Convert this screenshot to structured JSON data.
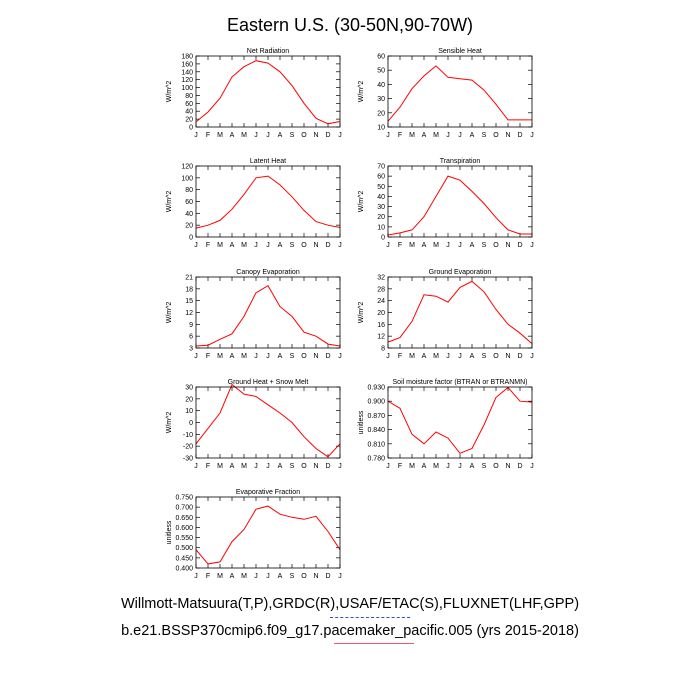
{
  "figure_title": "Eastern U.S. (30-50N,90-70W)",
  "months": [
    "J",
    "F",
    "M",
    "A",
    "M",
    "J",
    "J",
    "A",
    "S",
    "O",
    "N",
    "D",
    "J"
  ],
  "captions": {
    "line1": "Willmott-Matsuura(T,P),GRDC(R),USAF/ETAC(S),FLUXNET(LHF,GPP)",
    "line2": "b.e21.BSSP370cmip6.f09_g17.pacemaker_pacific.005 (yrs 2015-2018)"
  },
  "line_color": "#ff0000",
  "chart_data": [
    {
      "type": "line",
      "title": "Net Radiation",
      "ylabel": "W/m^2",
      "ylim": [
        0,
        180
      ],
      "yticks": [
        0,
        20,
        40,
        60,
        80,
        100,
        120,
        140,
        160,
        180
      ],
      "ytick_labels": [
        "0",
        "20",
        "40",
        "60",
        "80",
        "100",
        "120",
        "140",
        "160",
        "180"
      ],
      "values": [
        13,
        38,
        73,
        127,
        153,
        168,
        162,
        140,
        105,
        60,
        22,
        8,
        14
      ]
    },
    {
      "type": "line",
      "title": "Sensible Heat",
      "ylabel": "W/m^2",
      "ylim": [
        10,
        60
      ],
      "yticks": [
        10,
        20,
        30,
        40,
        50,
        60
      ],
      "ytick_labels": [
        "10",
        "20",
        "30",
        "40",
        "50",
        "60"
      ],
      "values": [
        14,
        24,
        37,
        46,
        53,
        45,
        44,
        43,
        36,
        26,
        15,
        15,
        15
      ]
    },
    {
      "type": "line",
      "title": "Latent Heat",
      "ylabel": "W/m^2",
      "ylim": [
        0,
        120
      ],
      "yticks": [
        0,
        20,
        40,
        60,
        80,
        100,
        120
      ],
      "ytick_labels": [
        "0",
        "20",
        "40",
        "60",
        "80",
        "100",
        "120"
      ],
      "values": [
        15,
        20,
        28,
        47,
        72,
        100,
        103,
        88,
        68,
        45,
        26,
        20,
        16
      ]
    },
    {
      "type": "line",
      "title": "Transpiration",
      "ylabel": "W/m^2",
      "ylim": [
        0,
        70
      ],
      "yticks": [
        0,
        10,
        20,
        30,
        40,
        50,
        60,
        70
      ],
      "ytick_labels": [
        "0",
        "10",
        "20",
        "30",
        "40",
        "50",
        "60",
        "70"
      ],
      "values": [
        2,
        4,
        7,
        20,
        40,
        60,
        56,
        45,
        33,
        19,
        7,
        3,
        3
      ]
    },
    {
      "type": "line",
      "title": "Canopy Evaporation",
      "ylabel": "W/m^2",
      "ylim": [
        3,
        21
      ],
      "yticks": [
        3,
        6,
        9,
        12,
        15,
        18,
        21
      ],
      "ytick_labels": [
        "3",
        "6",
        "9",
        "12",
        "15",
        "18",
        "21"
      ],
      "values": [
        3.5,
        3.7,
        5.2,
        6.6,
        11,
        17,
        18.8,
        13.5,
        11,
        7,
        6,
        4,
        3.5
      ]
    },
    {
      "type": "line",
      "title": "Ground Evaporation",
      "ylabel": "W/m^2",
      "ylim": [
        8,
        32
      ],
      "yticks": [
        8,
        12,
        16,
        20,
        24,
        28,
        32
      ],
      "ytick_labels": [
        "8",
        "12",
        "16",
        "20",
        "24",
        "28",
        "32"
      ],
      "values": [
        10,
        11.5,
        17,
        26,
        25.5,
        23.5,
        28.5,
        30.5,
        27,
        21,
        16,
        13,
        9.5
      ]
    },
    {
      "type": "line",
      "title": "Ground Heat + Snow Melt",
      "ylabel": "W/m^2",
      "ylim": [
        -30,
        30
      ],
      "yticks": [
        -30,
        -20,
        -10,
        0,
        10,
        20,
        30
      ],
      "ytick_labels": [
        "-30",
        "-20",
        "-10",
        "0",
        "10",
        "20",
        "30"
      ],
      "values": [
        -18,
        -5,
        8,
        32,
        24,
        22,
        15,
        8,
        0,
        -12,
        -22,
        -29,
        -18
      ]
    },
    {
      "type": "line",
      "title": "Soil moisture factor (BTRAN or BTRANMN)",
      "ylabel": "unitless",
      "ylim": [
        0.78,
        0.93
      ],
      "yticks": [
        0.78,
        0.81,
        0.84,
        0.87,
        0.9,
        0.93
      ],
      "ytick_labels": [
        "0.780",
        "0.810",
        "0.840",
        "0.870",
        "0.900",
        "0.930"
      ],
      "values": [
        0.9,
        0.885,
        0.83,
        0.81,
        0.835,
        0.822,
        0.79,
        0.8,
        0.85,
        0.908,
        0.929,
        0.9,
        0.898
      ]
    },
    {
      "type": "line",
      "title": "Evaporative Fraction",
      "ylabel": "unitless",
      "ylim": [
        0.4,
        0.75
      ],
      "yticks": [
        0.4,
        0.45,
        0.5,
        0.55,
        0.6,
        0.65,
        0.7,
        0.75
      ],
      "ytick_labels": [
        "0.400",
        "0.450",
        "0.500",
        "0.550",
        "0.600",
        "0.650",
        "0.700",
        "0.750"
      ],
      "values": [
        0.49,
        0.42,
        0.43,
        0.53,
        0.59,
        0.69,
        0.705,
        0.665,
        0.65,
        0.64,
        0.655,
        0.58,
        0.49
      ]
    }
  ]
}
